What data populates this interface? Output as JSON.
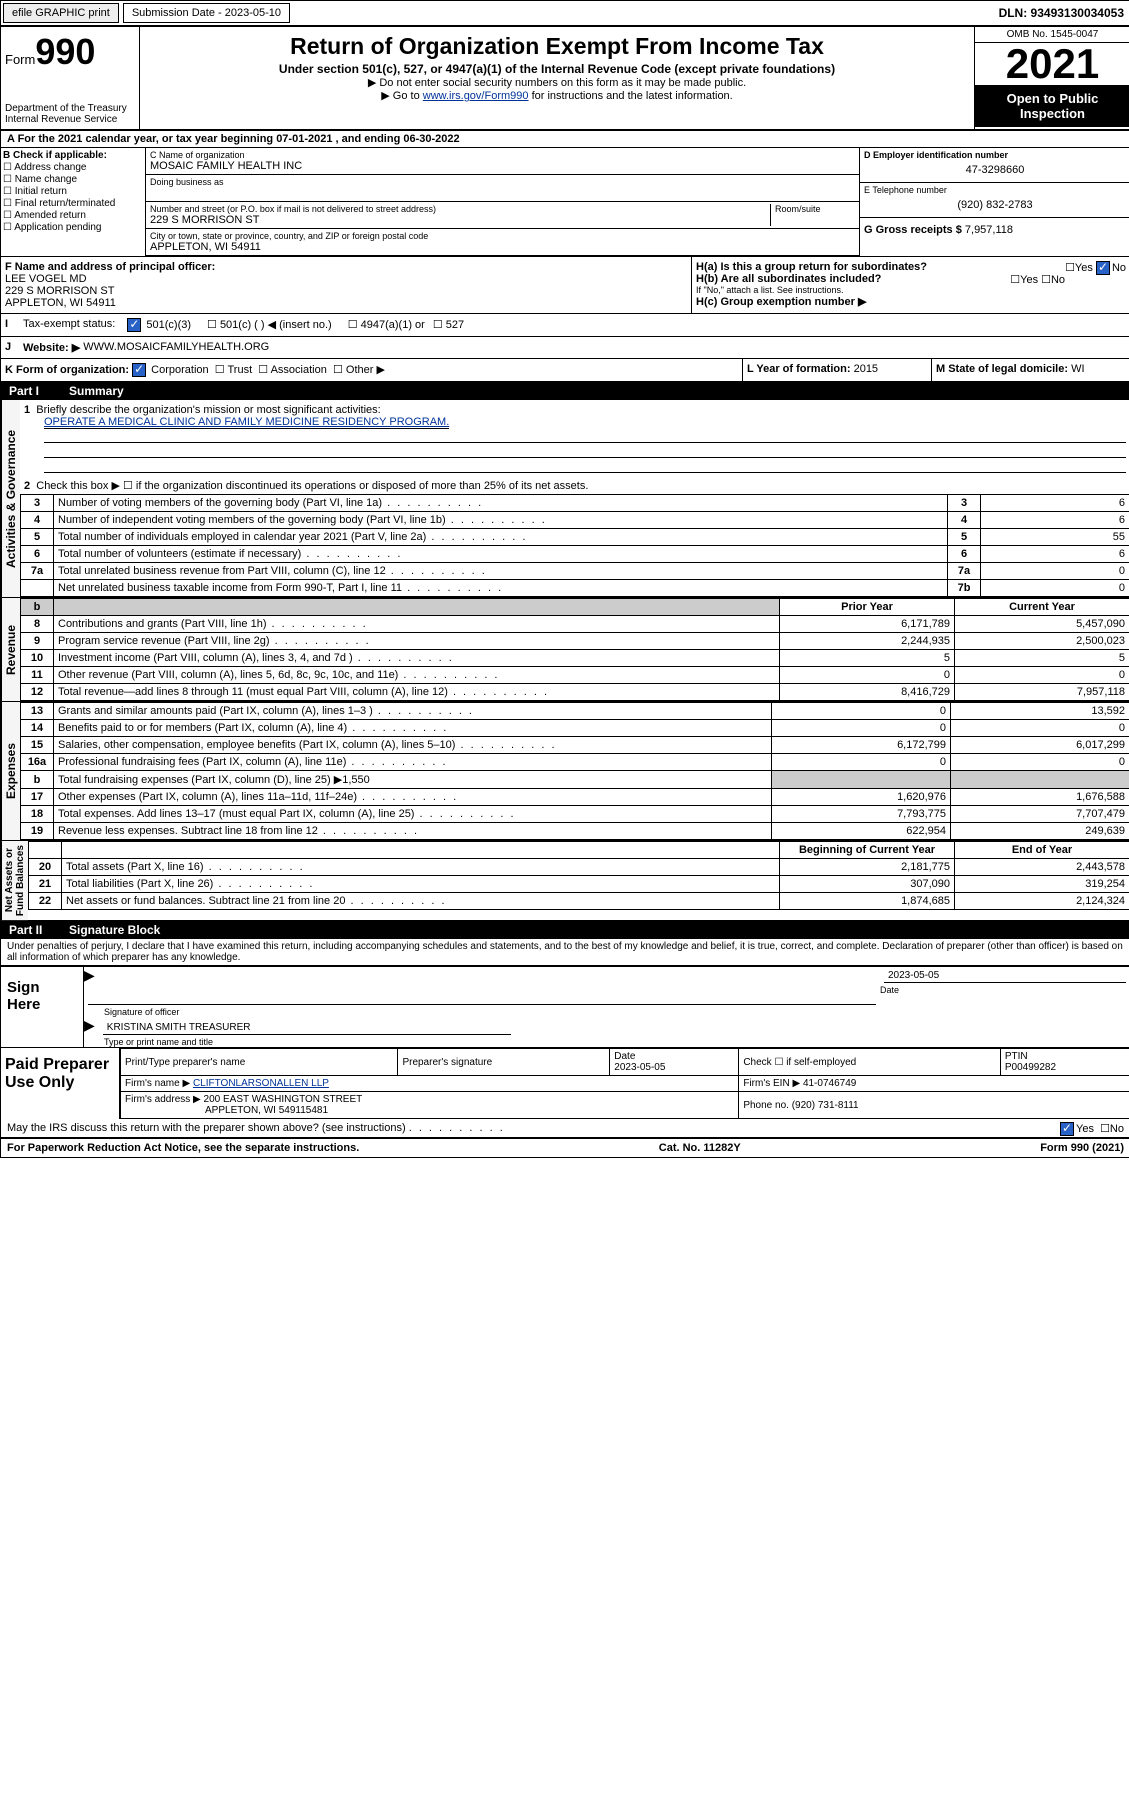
{
  "topbar": {
    "efile": "efile GRAPHIC print",
    "subLbl": "Submission Date - 2023-05-10",
    "dln": "DLN: 93493130034053"
  },
  "hdr": {
    "form": "Form",
    "num": "990",
    "title": "Return of Organization Exempt From Income Tax",
    "sub": "Under section 501(c), 527, or 4947(a)(1) of the Internal Revenue Code (except private foundations)",
    "note1": "▶ Do not enter social security numbers on this form as it may be made public.",
    "note2a": "▶ Go to ",
    "note2link": "www.irs.gov/Form990",
    "note2b": " for instructions and the latest information.",
    "dept": "Department of the Treasury",
    "irs": "Internal Revenue Service",
    "omb": "OMB No. 1545-0047",
    "year": "2021",
    "otp": "Open to Public Inspection"
  },
  "A": {
    "line": "A For the 2021 calendar year, or tax year beginning 07-01-2021    , and ending 06-30-2022"
  },
  "B": {
    "hdr": "B Check if applicable:",
    "items": [
      "Address change",
      "Name change",
      "Initial return",
      "Final return/terminated",
      "Amended return",
      "Application pending"
    ]
  },
  "C": {
    "nameLbl": "C Name of organization",
    "name": "MOSAIC FAMILY HEALTH INC",
    "dbaLbl": "Doing business as",
    "dba": "",
    "addrLbl": "Number and street (or P.O. box if mail is not delivered to street address)",
    "room": "Room/suite",
    "addr": "229 S MORRISON ST",
    "cityLbl": "City or town, state or province, country, and ZIP or foreign postal code",
    "city": "APPLETON, WI  54911"
  },
  "D": {
    "lbl": "D Employer identification number",
    "val": "47-3298660"
  },
  "E": {
    "lbl": "E Telephone number",
    "val": "(920) 832-2783"
  },
  "G": {
    "lbl": "G Gross receipts $",
    "val": "7,957,118"
  },
  "F": {
    "lbl": "F  Name and address of principal officer:",
    "name": "LEE VOGEL MD",
    "addr1": "229 S MORRISON ST",
    "addr2": "APPLETON, WI  54911"
  },
  "H": {
    "a": "H(a)  Is this a group return for subordinates?",
    "b": "H(b)  Are all subordinates included?",
    "bnote": "If \"No,\" attach a list. See instructions.",
    "c": "H(c)  Group exemption number ▶"
  },
  "I": {
    "lbl": "Tax-exempt status:",
    "o1": "501(c)(3)",
    "o2": "501(c) (  ) ◀ (insert no.)",
    "o3": "4947(a)(1) or",
    "o4": "527"
  },
  "J": {
    "lbl": "Website: ▶",
    "val": "WWW.MOSAICFAMILYHEALTH.ORG"
  },
  "K": {
    "lbl": "K Form of organization:",
    "o1": "Corporation",
    "o2": "Trust",
    "o3": "Association",
    "o4": "Other ▶"
  },
  "L": {
    "lbl": "L Year of formation:",
    "val": "2015"
  },
  "M": {
    "lbl": "M State of legal domicile:",
    "val": "WI"
  },
  "part1": {
    "hdr": "Part I",
    "title": "Summary"
  },
  "s1": {
    "l1": "Briefly describe the organization's mission or most significant activities:",
    "mission": "OPERATE A MEDICAL CLINIC AND FAMILY MEDICINE RESIDENCY PROGRAM.",
    "l2": "Check this box ▶ ☐  if the organization discontinued its operations or disposed of more than 25% of its net assets.",
    "rows": [
      {
        "n": "3",
        "d": "Number of voting members of the governing body (Part VI, line 1a)",
        "c": "3",
        "v": "6"
      },
      {
        "n": "4",
        "d": "Number of independent voting members of the governing body (Part VI, line 1b)",
        "c": "4",
        "v": "6"
      },
      {
        "n": "5",
        "d": "Total number of individuals employed in calendar year 2021 (Part V, line 2a)",
        "c": "5",
        "v": "55"
      },
      {
        "n": "6",
        "d": "Total number of volunteers (estimate if necessary)",
        "c": "6",
        "v": "6"
      },
      {
        "n": "7a",
        "d": "Total unrelated business revenue from Part VIII, column (C), line 12",
        "c": "7a",
        "v": "0"
      },
      {
        "n": "",
        "d": "Net unrelated business taxable income from Form 990-T, Part I, line 11",
        "c": "7b",
        "v": "0"
      }
    ]
  },
  "rev": {
    "hdr1": "Prior Year",
    "hdr2": "Current Year",
    "rows": [
      {
        "n": "8",
        "d": "Contributions and grants (Part VIII, line 1h)",
        "p": "6,171,789",
        "c": "5,457,090"
      },
      {
        "n": "9",
        "d": "Program service revenue (Part VIII, line 2g)",
        "p": "2,244,935",
        "c": "2,500,023"
      },
      {
        "n": "10",
        "d": "Investment income (Part VIII, column (A), lines 3, 4, and 7d )",
        "p": "5",
        "c": "5"
      },
      {
        "n": "11",
        "d": "Other revenue (Part VIII, column (A), lines 5, 6d, 8c, 9c, 10c, and 11e)",
        "p": "0",
        "c": "0"
      },
      {
        "n": "12",
        "d": "Total revenue—add lines 8 through 11 (must equal Part VIII, column (A), line 12)",
        "p": "8,416,729",
        "c": "7,957,118"
      }
    ]
  },
  "exp": {
    "rows": [
      {
        "n": "13",
        "d": "Grants and similar amounts paid (Part IX, column (A), lines 1–3 )",
        "p": "0",
        "c": "13,592"
      },
      {
        "n": "14",
        "d": "Benefits paid to or for members (Part IX, column (A), line 4)",
        "p": "0",
        "c": "0"
      },
      {
        "n": "15",
        "d": "Salaries, other compensation, employee benefits (Part IX, column (A), lines 5–10)",
        "p": "6,172,799",
        "c": "6,017,299"
      },
      {
        "n": "16a",
        "d": "Professional fundraising fees (Part IX, column (A), line 11e)",
        "p": "0",
        "c": "0"
      },
      {
        "n": "b",
        "d": "Total fundraising expenses (Part IX, column (D), line 25) ▶1,550",
        "p": "",
        "c": "",
        "shade": true
      },
      {
        "n": "17",
        "d": "Other expenses (Part IX, column (A), lines 11a–11d, 11f–24e)",
        "p": "1,620,976",
        "c": "1,676,588"
      },
      {
        "n": "18",
        "d": "Total expenses. Add lines 13–17 (must equal Part IX, column (A), line 25)",
        "p": "7,793,775",
        "c": "7,707,479"
      },
      {
        "n": "19",
        "d": "Revenue less expenses. Subtract line 18 from line 12",
        "p": "622,954",
        "c": "249,639"
      }
    ]
  },
  "na": {
    "hdr1": "Beginning of Current Year",
    "hdr2": "End of Year",
    "rows": [
      {
        "n": "20",
        "d": "Total assets (Part X, line 16)",
        "p": "2,181,775",
        "c": "2,443,578"
      },
      {
        "n": "21",
        "d": "Total liabilities (Part X, line 26)",
        "p": "307,090",
        "c": "319,254"
      },
      {
        "n": "22",
        "d": "Net assets or fund balances. Subtract line 21 from line 20",
        "p": "1,874,685",
        "c": "2,124,324"
      }
    ]
  },
  "part2": {
    "hdr": "Part II",
    "title": "Signature Block",
    "decl": "Under penalties of perjury, I declare that I have examined this return, including accompanying schedules and statements, and to the best of my knowledge and belief, it is true, correct, and complete. Declaration of preparer (other than officer) is based on all information of which preparer has any knowledge."
  },
  "sign": {
    "here": "Sign Here",
    "sigLbl": "Signature of officer",
    "date": "2023-05-05",
    "dateLbl": "Date",
    "name": "KRISTINA SMITH  TREASURER",
    "nameLbl": "Type or print name and title"
  },
  "prep": {
    "title": "Paid Preparer Use Only",
    "h1": "Print/Type preparer's name",
    "h2": "Preparer's signature",
    "h3": "Date",
    "dateV": "2023-05-05",
    "h4": "Check ☐ if self-employed",
    "h5": "PTIN",
    "ptin": "P00499282",
    "firmLbl": "Firm's name    ▶",
    "firm": "CLIFTONLARSONALLEN LLP",
    "einLbl": "Firm's EIN ▶",
    "ein": "41-0746749",
    "addrLbl": "Firm's address ▶",
    "addr1": "200 EAST WASHINGTON STREET",
    "addr2": "APPLETON, WI  549115481",
    "phLbl": "Phone no.",
    "ph": "(920) 731-8111"
  },
  "discuss": "May the IRS discuss this return with the preparer shown above? (see instructions)",
  "foot": {
    "l": "For Paperwork Reduction Act Notice, see the separate instructions.",
    "m": "Cat. No. 11282Y",
    "r": "Form 990 (2021)"
  }
}
